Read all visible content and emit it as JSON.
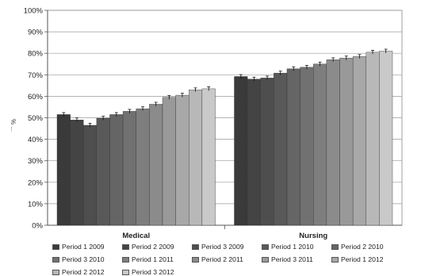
{
  "chart_data": {
    "type": "bar",
    "title": "",
    "xlabel": "",
    "ylabel": "% ...",
    "ylim": [
      0,
      100
    ],
    "yticks": [
      "0%",
      "10%",
      "20%",
      "30%",
      "40%",
      "50%",
      "60%",
      "70%",
      "80%",
      "90%",
      "100%"
    ],
    "categories": [
      "Medical",
      "Nursing"
    ],
    "grid": true,
    "legend_position": "bottom",
    "series": [
      {
        "name": "Period 1 2009",
        "values": [
          51.5,
          69.2
        ],
        "color": "#3a3a3a"
      },
      {
        "name": "Period 2 2009",
        "values": [
          49.0,
          68.0
        ],
        "color": "#444444"
      },
      {
        "name": "Period 3 2009",
        "values": [
          46.5,
          68.5
        ],
        "color": "#4e4e4e"
      },
      {
        "name": "Period 1 2010",
        "values": [
          49.8,
          70.8
        ],
        "color": "#595959"
      },
      {
        "name": "Period 2 2010",
        "values": [
          51.5,
          72.8
        ],
        "color": "#656565"
      },
      {
        "name": "Period 3 2010",
        "values": [
          53.0,
          73.5
        ],
        "color": "#717171"
      },
      {
        "name": "Period 1 2011",
        "values": [
          54.2,
          75.0
        ],
        "color": "#7e7e7e"
      },
      {
        "name": "Period 2 2011",
        "values": [
          56.3,
          77.0
        ],
        "color": "#8b8b8b"
      },
      {
        "name": "Period 3 2011",
        "values": [
          59.5,
          77.8
        ],
        "color": "#999999"
      },
      {
        "name": "Period  1 2012",
        "values": [
          60.5,
          78.5
        ],
        "color": "#a8a8a8"
      },
      {
        "name": "Period  2 2012",
        "values": [
          63.0,
          80.5
        ],
        "color": "#b8b8b8"
      },
      {
        "name": "Period  3 2012",
        "values": [
          63.5,
          81.0
        ],
        "color": "#c9c9c9"
      }
    ]
  }
}
